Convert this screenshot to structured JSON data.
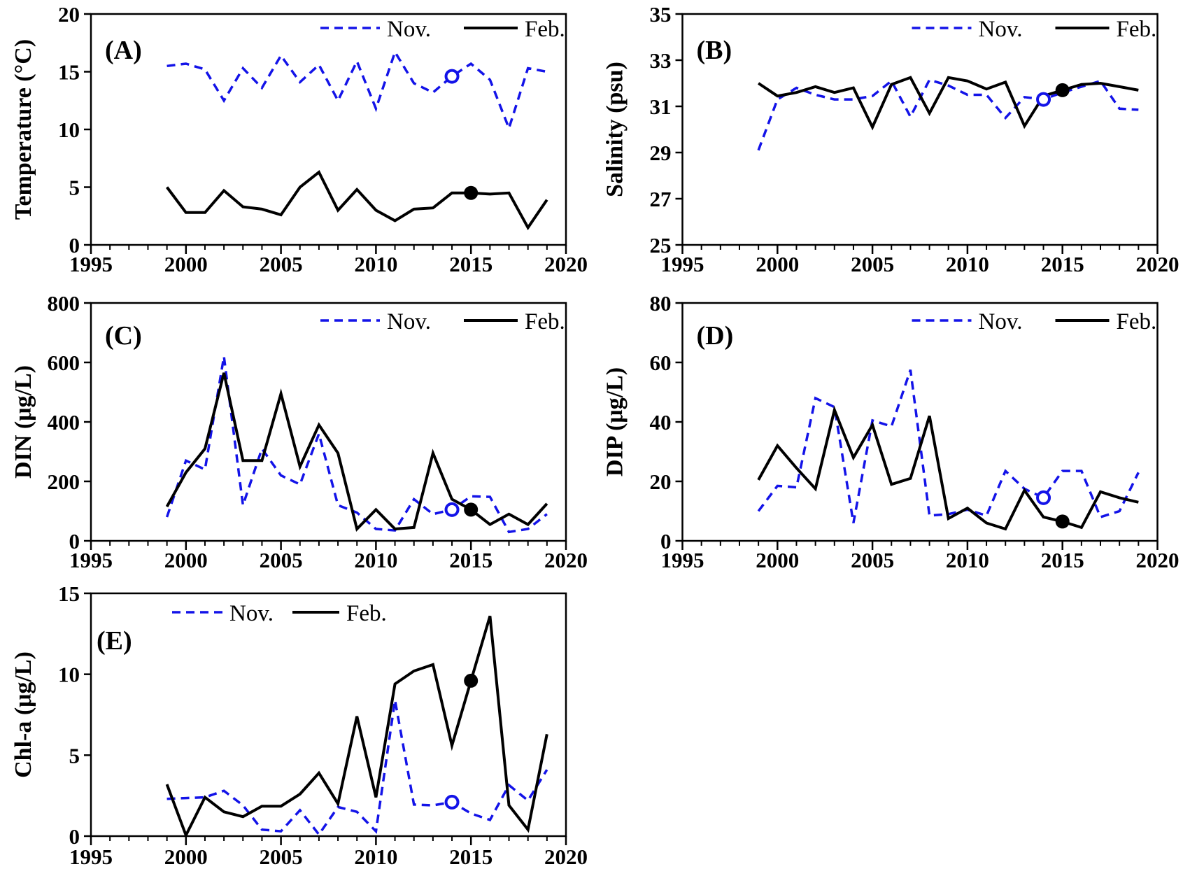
{
  "figure": {
    "description": "Five-panel time series figure comparing November and February surveys, 1999-2019",
    "legend_labels": {
      "nov": "Nov.",
      "feb": "Feb."
    },
    "colors": {
      "nov_blue": "#1313e8",
      "feb_black": "#000000",
      "axis": "#000000",
      "background": "#ffffff"
    }
  },
  "chart_data": [
    {
      "id": "A",
      "type": "line",
      "panel_label": "(A)",
      "ylabel": "Temperature (°C)",
      "ylim": [
        0,
        20
      ],
      "yticks": [
        0,
        5,
        10,
        15,
        20
      ],
      "xlim": [
        1995,
        2020
      ],
      "xticks": [
        1995,
        2000,
        2005,
        2010,
        2015,
        2020
      ],
      "x": [
        1999,
        2000,
        2001,
        2002,
        2003,
        2004,
        2005,
        2006,
        2007,
        2008,
        2009,
        2010,
        2011,
        2012,
        2013,
        2014,
        2015,
        2016,
        2017,
        2018,
        2019
      ],
      "legend_position": "top-right",
      "grid": false,
      "series": [
        {
          "name": "Nov.",
          "style": "dashed",
          "color": "#1313e8",
          "values": [
            15.5,
            15.7,
            15.2,
            12.5,
            15.3,
            13.6,
            16.4,
            14.1,
            15.6,
            12.5,
            15.9,
            11.8,
            16.7,
            14.0,
            13.2,
            14.6,
            15.7,
            14.3,
            10.1,
            15.3,
            15.0
          ]
        },
        {
          "name": "Feb.",
          "style": "solid",
          "color": "#000000",
          "values": [
            5.0,
            2.8,
            2.8,
            4.7,
            3.3,
            3.1,
            2.6,
            5.0,
            6.3,
            3.0,
            4.8,
            3.0,
            2.1,
            3.1,
            3.2,
            4.5,
            4.5,
            4.4,
            4.5,
            1.5,
            3.9
          ]
        }
      ],
      "markers": [
        {
          "series": "Nov.",
          "year": 2014,
          "value": 14.6,
          "type": "open-circle"
        },
        {
          "series": "Feb.",
          "year": 2015,
          "value": 4.5,
          "type": "filled-circle"
        }
      ]
    },
    {
      "id": "B",
      "type": "line",
      "panel_label": "(B)",
      "ylabel": "Salinity (psu)",
      "ylim": [
        25,
        35
      ],
      "yticks": [
        25,
        27,
        29,
        31,
        33,
        35
      ],
      "xlim": [
        1995,
        2020
      ],
      "xticks": [
        1995,
        2000,
        2005,
        2010,
        2015,
        2020
      ],
      "x": [
        1999,
        2000,
        2001,
        2002,
        2003,
        2004,
        2005,
        2006,
        2007,
        2008,
        2009,
        2010,
        2011,
        2012,
        2013,
        2014,
        2015,
        2016,
        2017,
        2018,
        2019
      ],
      "legend_position": "top-right",
      "grid": false,
      "series": [
        {
          "name": "Nov.",
          "style": "dashed",
          "color": "#1313e8",
          "values": [
            29.1,
            31.3,
            31.8,
            31.5,
            31.3,
            31.3,
            31.45,
            32.1,
            30.55,
            32.15,
            31.9,
            31.5,
            31.5,
            30.5,
            31.4,
            31.3,
            31.6,
            31.85,
            32.1,
            30.9,
            30.85
          ]
        },
        {
          "name": "Feb.",
          "style": "solid",
          "color": "#000000",
          "values": [
            32.0,
            31.45,
            31.6,
            31.85,
            31.6,
            31.8,
            30.1,
            31.95,
            32.25,
            30.7,
            32.25,
            32.1,
            31.75,
            32.05,
            30.15,
            31.45,
            31.7,
            31.95,
            32.0,
            31.85,
            31.7
          ]
        }
      ],
      "markers": [
        {
          "series": "Nov.",
          "year": 2014,
          "value": 31.3,
          "type": "open-circle"
        },
        {
          "series": "Feb.",
          "year": 2015,
          "value": 31.7,
          "type": "filled-circle"
        }
      ]
    },
    {
      "id": "C",
      "type": "line",
      "panel_label": "(C)",
      "ylabel": "DIN (μg/L)",
      "ylim": [
        0,
        800
      ],
      "yticks": [
        0,
        200,
        400,
        600,
        800
      ],
      "xlim": [
        1995,
        2020
      ],
      "xticks": [
        1995,
        2000,
        2005,
        2010,
        2015,
        2020
      ],
      "x": [
        1999,
        2000,
        2001,
        2002,
        2003,
        2004,
        2005,
        2006,
        2007,
        2008,
        2009,
        2010,
        2011,
        2012,
        2013,
        2014,
        2015,
        2016,
        2017,
        2018,
        2019
      ],
      "legend_position": "top-right",
      "grid": false,
      "series": [
        {
          "name": "Nov.",
          "style": "dashed",
          "color": "#1313e8",
          "values": [
            80,
            270,
            240,
            620,
            120,
            310,
            220,
            190,
            360,
            120,
            95,
            40,
            35,
            140,
            90,
            105,
            150,
            148,
            30,
            40,
            90
          ]
        },
        {
          "name": "Feb.",
          "style": "solid",
          "color": "#000000",
          "values": [
            115,
            230,
            310,
            565,
            270,
            270,
            495,
            250,
            390,
            295,
            40,
            105,
            40,
            45,
            295,
            140,
            105,
            55,
            90,
            55,
            125
          ]
        }
      ],
      "markers": [
        {
          "series": "Nov.",
          "year": 2014,
          "value": 105,
          "type": "open-circle"
        },
        {
          "series": "Feb.",
          "year": 2015,
          "value": 105,
          "type": "filled-circle"
        }
      ]
    },
    {
      "id": "D",
      "type": "line",
      "panel_label": "(D)",
      "ylabel": "DIP (μg/L)",
      "ylim": [
        0,
        80
      ],
      "yticks": [
        0,
        20,
        40,
        60,
        80
      ],
      "xlim": [
        1995,
        2020
      ],
      "xticks": [
        1995,
        2000,
        2005,
        2010,
        2015,
        2020
      ],
      "x": [
        1999,
        2000,
        2001,
        2002,
        2003,
        2004,
        2005,
        2006,
        2007,
        2008,
        2009,
        2010,
        2011,
        2012,
        2013,
        2014,
        2015,
        2016,
        2017,
        2018,
        2019
      ],
      "legend_position": "top-right",
      "grid": false,
      "series": [
        {
          "name": "Nov.",
          "style": "dashed",
          "color": "#1313e8",
          "values": [
            10,
            18.5,
            18,
            48,
            45,
            6,
            40.5,
            38.5,
            57.5,
            8.5,
            9,
            10.5,
            8.5,
            23.5,
            17.5,
            14.5,
            23.5,
            23.5,
            8,
            10,
            23
          ]
        },
        {
          "name": "Feb.",
          "style": "solid",
          "color": "#000000",
          "values": [
            20.5,
            32,
            24.5,
            17.5,
            44,
            28,
            39,
            19,
            21,
            42,
            7.5,
            11,
            6,
            4,
            17,
            8,
            6.5,
            4.5,
            16.5,
            14.5,
            13
          ]
        }
      ],
      "markers": [
        {
          "series": "Nov.",
          "year": 2014,
          "value": 14.5,
          "type": "open-circle"
        },
        {
          "series": "Feb.",
          "year": 2015,
          "value": 6.5,
          "type": "filled-circle"
        }
      ]
    },
    {
      "id": "E",
      "type": "line",
      "panel_label": "(E)",
      "ylabel": "Chl-a (μg/L)",
      "ylim": [
        0,
        15
      ],
      "yticks": [
        0,
        5,
        10,
        15
      ],
      "xlim": [
        1995,
        2020
      ],
      "xticks": [
        1995,
        2000,
        2005,
        2010,
        2015,
        2020
      ],
      "x": [
        1999,
        2000,
        2001,
        2002,
        2003,
        2004,
        2005,
        2006,
        2007,
        2008,
        2009,
        2010,
        2011,
        2012,
        2013,
        2014,
        2015,
        2016,
        2017,
        2018,
        2019
      ],
      "legend_position": "top-left",
      "grid": false,
      "series": [
        {
          "name": "Nov.",
          "style": "dashed",
          "color": "#1313e8",
          "values": [
            2.3,
            2.35,
            2.4,
            2.8,
            1.9,
            0.4,
            0.3,
            1.6,
            0.1,
            1.8,
            1.5,
            0.3,
            8.4,
            1.95,
            1.9,
            2.1,
            1.4,
            1.0,
            3.15,
            2.2,
            4.1
          ]
        },
        {
          "name": "Feb.",
          "style": "solid",
          "color": "#000000",
          "values": [
            3.2,
            0.05,
            2.4,
            1.5,
            1.2,
            1.85,
            1.85,
            2.6,
            3.9,
            2.0,
            7.4,
            2.4,
            9.4,
            10.2,
            10.6,
            5.6,
            9.6,
            13.6,
            1.9,
            0.4,
            6.3
          ]
        }
      ],
      "markers": [
        {
          "series": "Nov.",
          "year": 2014,
          "value": 2.1,
          "type": "open-circle"
        },
        {
          "series": "Feb.",
          "year": 2015,
          "value": 9.6,
          "type": "filled-circle"
        }
      ]
    }
  ]
}
